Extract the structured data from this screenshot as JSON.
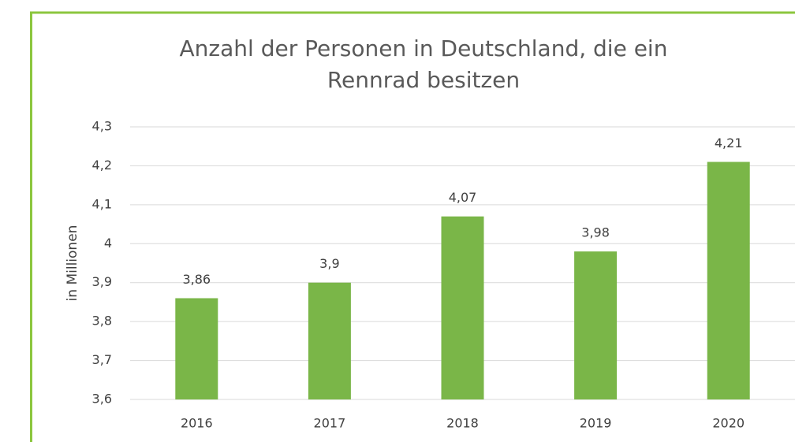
{
  "chart_data": {
    "type": "bar",
    "title": "Anzahl der Personen in Deutschland, die ein Rennrad besitzen",
    "y_label": "in Millionen",
    "categories": [
      "2016",
      "2017",
      "2018",
      "2019",
      "2020"
    ],
    "values": [
      3.86,
      3.9,
      4.07,
      3.98,
      4.21
    ],
    "value_labels": [
      "3,86",
      "3,9",
      "4,07",
      "3,98",
      "4,21"
    ],
    "color": "#7ab648",
    "ylim": [
      3.6,
      4.3
    ],
    "yticks": [
      {
        "value": 3.6,
        "label": "3,6"
      },
      {
        "value": 3.7,
        "label": "3,7"
      },
      {
        "value": 3.8,
        "label": "3,8"
      },
      {
        "value": 3.9,
        "label": "3,9"
      },
      4,
      {
        "value": 4.1,
        "label": "4,1"
      },
      {
        "value": 4.2,
        "label": "4,2"
      },
      {
        "value": 4.3,
        "label": "4,3"
      }
    ],
    "grid": true
  }
}
